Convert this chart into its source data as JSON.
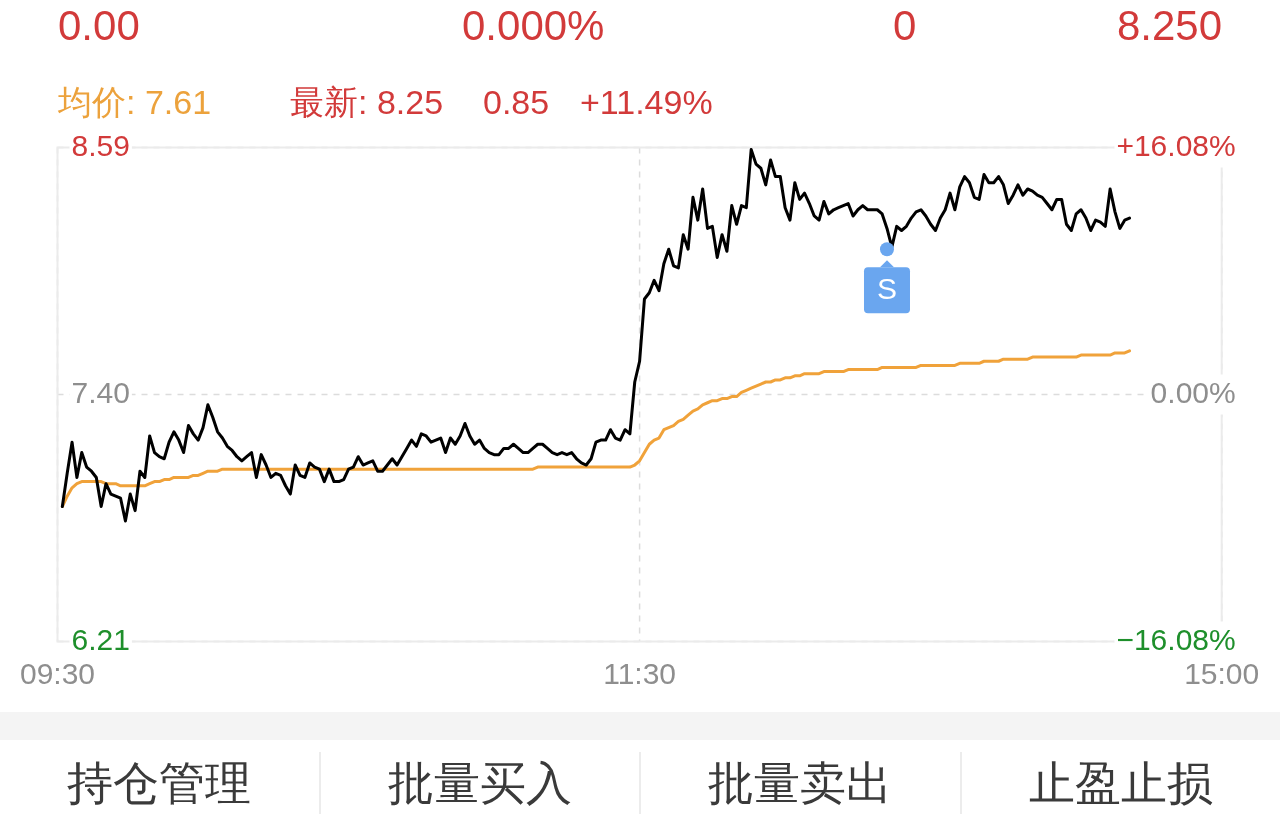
{
  "chart_data": {
    "type": "line",
    "annotations": [
      "0.00",
      "0.000%",
      "0",
      "8.250",
      "均价: 7.61",
      "最新: 8.25",
      "0.85",
      "+11.49%",
      "持仓管理",
      "批量买入",
      "批量卖出",
      "止盈止损"
    ],
    "categories": [
      "09:30",
      null,
      null,
      null,
      null,
      null,
      null,
      null,
      null,
      null,
      null,
      null,
      null,
      null,
      null,
      null,
      null,
      null,
      null,
      null,
      null,
      null,
      null,
      null,
      null,
      null,
      null,
      null,
      null,
      null,
      null,
      null,
      null,
      null,
      null,
      null,
      null,
      null,
      null,
      null,
      null,
      null,
      null,
      null,
      null,
      null,
      null,
      null,
      null,
      null,
      null,
      null,
      null,
      null,
      null,
      null,
      null,
      null,
      null,
      null,
      null,
      null,
      null,
      null,
      null,
      null,
      null,
      null,
      null,
      null,
      null,
      null,
      null,
      null,
      null,
      null,
      null,
      null,
      null,
      null,
      null,
      null,
      null,
      null,
      null,
      null,
      null,
      null,
      null,
      null,
      null,
      null,
      null,
      null,
      null,
      null,
      null,
      null,
      null,
      null,
      null,
      null,
      null,
      null,
      null,
      null,
      null,
      null,
      null,
      null,
      null,
      null,
      null,
      null,
      null,
      null,
      null,
      null,
      null,
      null,
      "11:30",
      null,
      null,
      null,
      null,
      null,
      null,
      null,
      null,
      null,
      null,
      null,
      null,
      null,
      null,
      null,
      null,
      null,
      null,
      null,
      null,
      null,
      null,
      null,
      null,
      null,
      null,
      null,
      null,
      null,
      null,
      null,
      null,
      null,
      null,
      null,
      null,
      null,
      null,
      null,
      null,
      null,
      null,
      null,
      null,
      null,
      null,
      null,
      null,
      null,
      null,
      null,
      null,
      null,
      null,
      null,
      null,
      null,
      null,
      null,
      null,
      null,
      null,
      null,
      null,
      null,
      null,
      null,
      null,
      null,
      null,
      null,
      null,
      null,
      null,
      null,
      null,
      null,
      null,
      null,
      null,
      null,
      null,
      null,
      null,
      null,
      null,
      null,
      null,
      null,
      null,
      null,
      null,
      null,
      null,
      null,
      null,
      null,
      null,
      null,
      null,
      null,
      null,
      null,
      null,
      null,
      null,
      null,
      null,
      null,
      null,
      null,
      null,
      null,
      null,
      null,
      null,
      null,
      null,
      null,
      "15:00"
    ],
    "ylim": [
      6.21,
      8.59
    ],
    "yticks": [
      6.21,
      {
        "value": 7.4,
        "label": "7.40"
      },
      8.59
    ],
    "y2lim": [
      -16.08,
      16.08
    ],
    "y2ticks": [
      {
        "value": -16.08,
        "label": "−16.08%"
      },
      {
        "value": 0,
        "label": "0.00%"
      },
      {
        "value": 16.08,
        "label": "+16.08%"
      }
    ],
    "grid": true,
    "series": [
      {
        "color": "#000000",
        "values": [
          null,
          6.86,
          7.02,
          7.17,
          7.0,
          7.12,
          7.05,
          7.03,
          7.0,
          6.86,
          6.97,
          6.92,
          6.91,
          6.9,
          6.79,
          6.92,
          6.84,
          7.03,
          7.0,
          7.2,
          7.12,
          7.1,
          7.09,
          7.17,
          7.22,
          7.18,
          7.12,
          7.25,
          7.21,
          7.18,
          7.24,
          7.35,
          7.29,
          7.22,
          7.19,
          7.15,
          7.13,
          7.1,
          7.08,
          7.1,
          7.12,
          7.0,
          7.11,
          7.06,
          7.0,
          7.02,
          7.01,
          6.96,
          6.92,
          7.06,
          7.01,
          7.0,
          7.07,
          7.05,
          7.04,
          6.98,
          7.04,
          6.98,
          6.98,
          6.99,
          7.04,
          7.05,
          7.1,
          7.06,
          7.07,
          7.08,
          7.03,
          7.03,
          7.06,
          7.09,
          7.06,
          7.1,
          7.14,
          7.18,
          7.15,
          7.21,
          7.2,
          7.17,
          7.18,
          7.19,
          7.12,
          7.19,
          7.16,
          7.2,
          7.26,
          7.2,
          7.16,
          7.18,
          7.14,
          7.12,
          7.11,
          7.11,
          7.14,
          7.14,
          7.16,
          7.14,
          7.12,
          7.12,
          7.14,
          7.16,
          7.16,
          7.14,
          7.12,
          7.11,
          7.12,
          7.11,
          7.12,
          7.09,
          7.07,
          7.06,
          7.09,
          7.17,
          7.18,
          7.18,
          7.23,
          7.19,
          7.18,
          7.23,
          7.21,
          7.46,
          7.56,
          7.86,
          7.89,
          7.95,
          7.9,
          8.03,
          8.1,
          8.02,
          8.01,
          8.17,
          8.1,
          8.35,
          8.24,
          8.39,
          8.2,
          8.21,
          8.06,
          8.17,
          8.09,
          8.31,
          8.22,
          8.31,
          8.3,
          8.58,
          8.51,
          8.49,
          8.41,
          8.53,
          8.45,
          8.45,
          8.3,
          8.24,
          8.42,
          8.34,
          8.37,
          8.32,
          8.26,
          8.24,
          8.33,
          8.27,
          8.29,
          8.3,
          8.31,
          8.32,
          8.26,
          8.29,
          8.31,
          8.29,
          8.29,
          8.29,
          8.27,
          8.2,
          8.11,
          8.21,
          8.19,
          8.21,
          8.25,
          8.28,
          8.29,
          8.26,
          8.22,
          8.19,
          8.25,
          8.29,
          8.37,
          8.29,
          8.4,
          8.45,
          8.42,
          8.35,
          8.34,
          8.46,
          8.42,
          8.42,
          8.45,
          8.41,
          8.32,
          8.36,
          8.41,
          8.36,
          8.39,
          8.38,
          8.36,
          8.35,
          8.32,
          8.29,
          8.34,
          8.34,
          8.22,
          8.19,
          8.27,
          8.29,
          8.25,
          8.19,
          8.24,
          8.23,
          8.21,
          8.39,
          8.28,
          8.2,
          8.24,
          8.25,
          null,
          null,
          null,
          null,
          null,
          null,
          null,
          null,
          null,
          null,
          null,
          null,
          null,
          null,
          null,
          null,
          null,
          null,
          null
        ]
      },
      {
        "color": "#f0a23a",
        "values": [
          null,
          6.86,
          6.91,
          6.95,
          6.97,
          6.98,
          6.98,
          6.98,
          6.98,
          6.98,
          6.97,
          6.97,
          6.97,
          6.96,
          6.96,
          6.96,
          6.96,
          6.96,
          6.96,
          6.97,
          6.98,
          6.98,
          6.99,
          6.99,
          7.0,
          7.0,
          7.0,
          7.0,
          7.01,
          7.01,
          7.02,
          7.03,
          7.03,
          7.03,
          7.04,
          7.04,
          7.04,
          7.04,
          7.04,
          7.04,
          7.04,
          7.04,
          7.04,
          7.04,
          7.04,
          7.04,
          7.04,
          7.04,
          7.04,
          7.04,
          7.04,
          7.04,
          7.04,
          7.04,
          7.04,
          7.04,
          7.04,
          7.04,
          7.04,
          7.04,
          7.04,
          7.04,
          7.04,
          7.04,
          7.04,
          7.04,
          7.04,
          7.04,
          7.04,
          7.04,
          7.04,
          7.04,
          7.04,
          7.04,
          7.04,
          7.04,
          7.04,
          7.04,
          7.04,
          7.04,
          7.04,
          7.04,
          7.04,
          7.04,
          7.04,
          7.04,
          7.04,
          7.04,
          7.04,
          7.04,
          7.04,
          7.04,
          7.04,
          7.04,
          7.04,
          7.04,
          7.04,
          7.04,
          7.04,
          7.05,
          7.05,
          7.05,
          7.05,
          7.05,
          7.05,
          7.05,
          7.05,
          7.05,
          7.05,
          7.05,
          7.05,
          7.05,
          7.05,
          7.05,
          7.05,
          7.05,
          7.05,
          7.05,
          7.05,
          7.06,
          7.08,
          7.12,
          7.16,
          7.18,
          7.19,
          7.23,
          7.24,
          7.25,
          7.27,
          7.28,
          7.3,
          7.32,
          7.33,
          7.35,
          7.36,
          7.37,
          7.37,
          7.38,
          7.38,
          7.39,
          7.39,
          7.41,
          7.42,
          7.43,
          7.44,
          7.45,
          7.46,
          7.46,
          7.47,
          7.47,
          7.48,
          7.48,
          7.49,
          7.49,
          7.5,
          7.5,
          7.5,
          7.5,
          7.51,
          7.51,
          7.51,
          7.51,
          7.51,
          7.52,
          7.52,
          7.52,
          7.52,
          7.52,
          7.52,
          7.52,
          7.53,
          7.53,
          7.53,
          7.53,
          7.53,
          7.53,
          7.53,
          7.53,
          7.54,
          7.54,
          7.54,
          7.54,
          7.54,
          7.54,
          7.54,
          7.54,
          7.55,
          7.55,
          7.55,
          7.55,
          7.55,
          7.56,
          7.56,
          7.56,
          7.56,
          7.57,
          7.57,
          7.57,
          7.57,
          7.57,
          7.57,
          7.58,
          7.58,
          7.58,
          7.58,
          7.58,
          7.58,
          7.58,
          7.58,
          7.58,
          7.58,
          7.59,
          7.59,
          7.59,
          7.59,
          7.59,
          7.59,
          7.59,
          7.6,
          7.6,
          7.6,
          7.61,
          null,
          null,
          null,
          null,
          null,
          null,
          null,
          null,
          null,
          null,
          null,
          null,
          null,
          null,
          null,
          null,
          null,
          null,
          null
        ]
      },
      {
        "type": "scatter",
        "name": "S",
        "color": "#6aa6ef",
        "values": [
          null,
          null,
          null,
          null,
          null,
          null,
          null,
          null,
          null,
          null,
          null,
          null,
          null,
          null,
          null,
          null,
          null,
          null,
          null,
          null,
          null,
          null,
          null,
          null,
          null,
          null,
          null,
          null,
          null,
          null,
          null,
          null,
          null,
          null,
          null,
          null,
          null,
          null,
          null,
          null,
          null,
          null,
          null,
          null,
          null,
          null,
          null,
          null,
          null,
          null,
          null,
          null,
          null,
          null,
          null,
          null,
          null,
          null,
          null,
          null,
          null,
          null,
          null,
          null,
          null,
          null,
          null,
          null,
          null,
          null,
          null,
          null,
          null,
          null,
          null,
          null,
          null,
          null,
          null,
          null,
          null,
          null,
          null,
          null,
          null,
          null,
          null,
          null,
          null,
          null,
          null,
          null,
          null,
          null,
          null,
          null,
          null,
          null,
          null,
          null,
          null,
          null,
          null,
          null,
          null,
          null,
          null,
          null,
          null,
          null,
          null,
          null,
          null,
          null,
          null,
          null,
          null,
          null,
          null,
          null,
          null,
          null,
          null,
          null,
          null,
          null,
          null,
          null,
          null,
          null,
          null,
          null,
          null,
          null,
          null,
          null,
          null,
          null,
          null,
          null,
          null,
          null,
          null,
          null,
          null,
          null,
          null,
          null,
          null,
          null,
          null,
          null,
          null,
          null,
          null,
          null,
          null,
          null,
          null,
          null,
          null,
          null,
          null,
          null,
          null,
          null,
          null,
          null,
          null,
          null,
          null,
          8.1,
          null,
          null,
          null,
          null,
          null,
          null,
          null,
          null,
          null,
          null,
          null,
          null,
          null,
          null,
          null,
          null,
          null,
          null,
          null,
          null,
          null,
          null,
          null,
          null,
          null,
          null,
          null,
          null,
          null,
          null,
          null,
          null,
          null,
          null,
          null,
          null,
          null,
          null,
          null,
          null,
          null,
          null,
          null,
          null,
          null,
          null,
          null,
          null,
          null,
          null,
          null,
          null,
          null,
          null,
          null,
          null,
          null,
          null,
          null,
          null,
          null,
          null,
          null,
          null,
          null,
          null,
          null,
          null,
          null
        ]
      }
    ]
  }
}
